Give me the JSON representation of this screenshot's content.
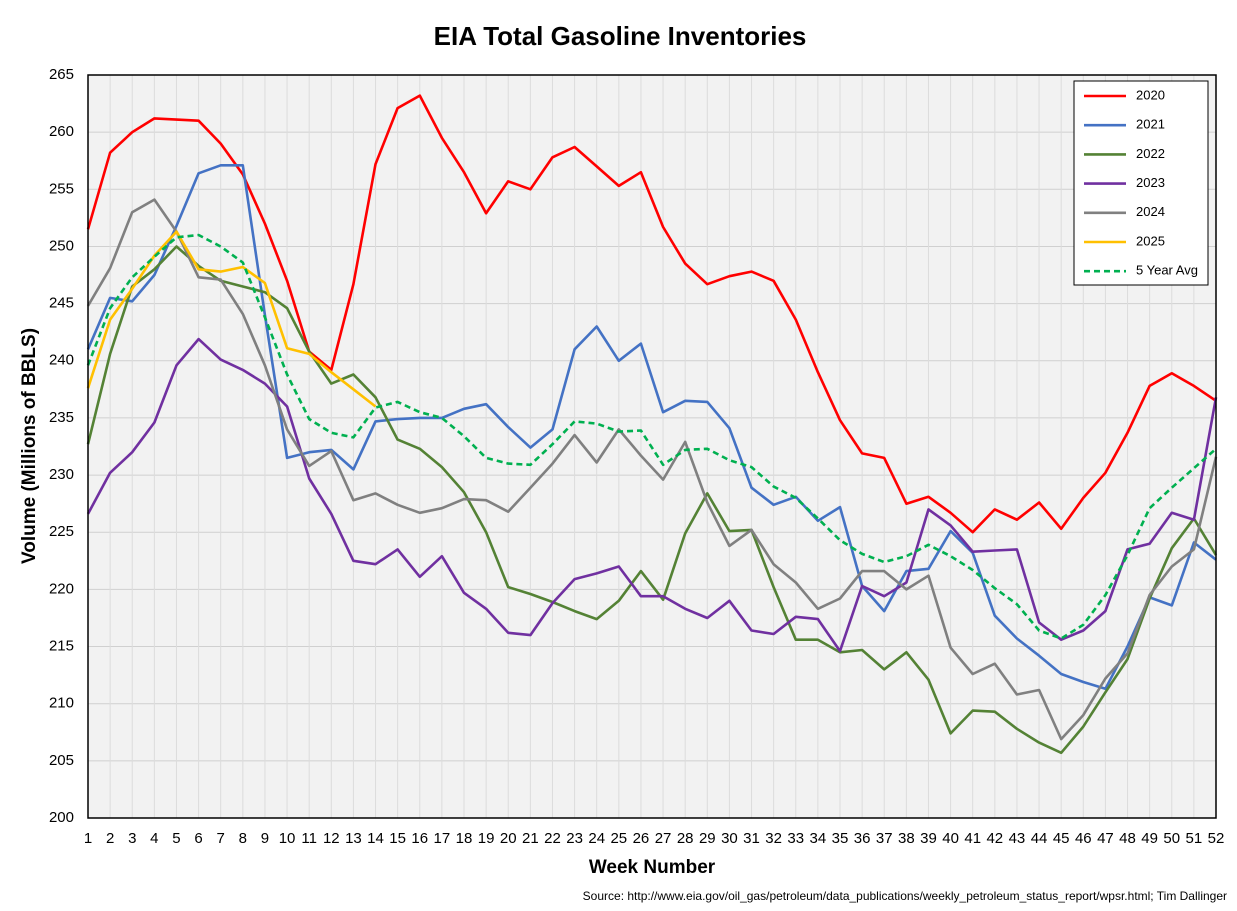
{
  "chart_data": {
    "type": "line",
    "title": "EIA Total Gasoline Inventories",
    "x_label": "Week Number",
    "y_label": "Volume (Millions of BBLS)",
    "source": "Source: http://www.eia.gov/oil_gas/petroleum/data_publications/weekly_petroleum_status_report/wpsr.html; Tim Dallinger",
    "categories": [
      1,
      2,
      3,
      4,
      5,
      6,
      7,
      8,
      9,
      10,
      11,
      12,
      13,
      14,
      15,
      16,
      17,
      18,
      19,
      20,
      21,
      22,
      23,
      24,
      25,
      26,
      27,
      28,
      29,
      30,
      31,
      32,
      33,
      34,
      35,
      36,
      37,
      38,
      39,
      40,
      41,
      42,
      43,
      44,
      45,
      46,
      47,
      48,
      49,
      50,
      51,
      52
    ],
    "ylim": [
      200,
      265
    ],
    "yticks": [
      200,
      205,
      210,
      215,
      220,
      225,
      230,
      235,
      240,
      245,
      250,
      255,
      260,
      265
    ],
    "grid": true,
    "legend": "top-right",
    "series": [
      {
        "name": "2020",
        "color": "#ff0000",
        "values": [
          251.5,
          258.2,
          260,
          261.2,
          261.1,
          261,
          259,
          256.3,
          252,
          247,
          240.8,
          239.2,
          246.7,
          257.2,
          262.1,
          263.2,
          259.5,
          256.5,
          252.9,
          255.7,
          255,
          257.8,
          258.7,
          257,
          255.3,
          256.5,
          251.7,
          248.5,
          246.7,
          247.4,
          247.8,
          247,
          243.6,
          239,
          234.8,
          231.9,
          231.5,
          227.5,
          228.1,
          226.7,
          225,
          227,
          226.1,
          227.6,
          225.3,
          228,
          230.2,
          233.7,
          237.8,
          238.9,
          237.8,
          236.5
        ]
      },
      {
        "name": "2021",
        "color": "#4472c4",
        "values": [
          241,
          245.5,
          245.2,
          247.5,
          251.8,
          256.4,
          257.1,
          257.1,
          244,
          231.5,
          232,
          232.2,
          230.5,
          234.7,
          234.9,
          235,
          235,
          235.8,
          236.2,
          234.2,
          232.4,
          234,
          241,
          243,
          240,
          241.5,
          235.5,
          236.5,
          236.4,
          234.1,
          228.9,
          227.4,
          228.1,
          226,
          227.2,
          220.3,
          218.1,
          221.6,
          221.8,
          225.1,
          223.2,
          217.7,
          215.7,
          214.2,
          212.6,
          211.9,
          211.3,
          215,
          219.3,
          218.6,
          224.1,
          222.6
        ]
      },
      {
        "name": "2022",
        "color": "#548235",
        "values": [
          232.7,
          240.6,
          246.5,
          248,
          250,
          248.3,
          247,
          246.5,
          246,
          244.6,
          240.8,
          238,
          238.8,
          236.8,
          233.1,
          232.3,
          230.7,
          228.5,
          225,
          220.2,
          219.6,
          218.9,
          218.1,
          217.4,
          219,
          221.6,
          219.1,
          224.9,
          228.4,
          225.1,
          225.2,
          220.2,
          215.6,
          215.6,
          214.5,
          214.7,
          213,
          214.5,
          212.1,
          207.4,
          209.4,
          209.3,
          207.8,
          206.6,
          205.7,
          208,
          211,
          213.9,
          219.2,
          223.6,
          226.2,
          223
        ]
      },
      {
        "name": "2023",
        "color": "#7030a0",
        "values": [
          226.6,
          230.2,
          232,
          234.6,
          239.6,
          241.9,
          240.1,
          239.2,
          238,
          236,
          229.7,
          226.6,
          222.5,
          222.2,
          223.5,
          221.1,
          222.9,
          219.7,
          218.3,
          216.2,
          216,
          218.8,
          220.9,
          221.4,
          222,
          219.4,
          219.4,
          218.3,
          217.5,
          219,
          216.4,
          216.1,
          217.6,
          217.4,
          214.6,
          220.3,
          219.4,
          220.6,
          227,
          225.6,
          223.3,
          223.4,
          223.5,
          217.1,
          215.6,
          216.4,
          218.1,
          223.5,
          224,
          226.7,
          226.1,
          236.8
        ]
      },
      {
        "name": "2024",
        "color": "#808080",
        "values": [
          244.8,
          248.1,
          253,
          254.1,
          251.3,
          247.3,
          247.1,
          244.1,
          239.6,
          234,
          230.8,
          232.1,
          227.8,
          228.4,
          227.4,
          226.7,
          227.1,
          227.9,
          227.8,
          226.8,
          228.9,
          231,
          233.5,
          231.1,
          234,
          231.7,
          229.6,
          232.9,
          227.6,
          223.8,
          225.2,
          222.2,
          220.6,
          218.3,
          219.2,
          221.6,
          221.6,
          220,
          221.2,
          214.9,
          212.6,
          213.5,
          210.8,
          211.2,
          206.9,
          209,
          212.2,
          214.4,
          219.5,
          222,
          223.5,
          231.6
        ]
      },
      {
        "name": "2025",
        "color": "#ffc000",
        "values": [
          237.6,
          243.6,
          246.3,
          249.2,
          251.3,
          248,
          247.8,
          248.2,
          246.8,
          241.1,
          240.6,
          239,
          237.5,
          236,
          null,
          null,
          null,
          null,
          null,
          null,
          null,
          null,
          null,
          null,
          null,
          null,
          null,
          null,
          null,
          null,
          null,
          null,
          null,
          null,
          null,
          null,
          null,
          null,
          null,
          null,
          null,
          null,
          null,
          null,
          null,
          null,
          null,
          null,
          null,
          null,
          null,
          null
        ]
      },
      {
        "name": "5 Year Avg",
        "color": "#00b050",
        "dashed": true,
        "values": [
          239.6,
          244.6,
          247.3,
          249.1,
          250.8,
          251,
          250,
          248.6,
          243.8,
          238.8,
          234.9,
          233.7,
          233.3,
          235.9,
          236.4,
          235.5,
          235,
          233.4,
          231.5,
          231,
          230.9,
          232.7,
          234.7,
          234.5,
          233.8,
          233.9,
          230.9,
          232.2,
          232.3,
          231.3,
          230.7,
          229,
          228,
          226.2,
          224.3,
          223.1,
          222.4,
          222.9,
          223.9,
          222.9,
          221.7,
          220.1,
          218.7,
          216.4,
          215.7,
          216.9,
          219.5,
          223,
          227.1,
          228.9,
          230.6,
          232.3
        ]
      }
    ]
  }
}
